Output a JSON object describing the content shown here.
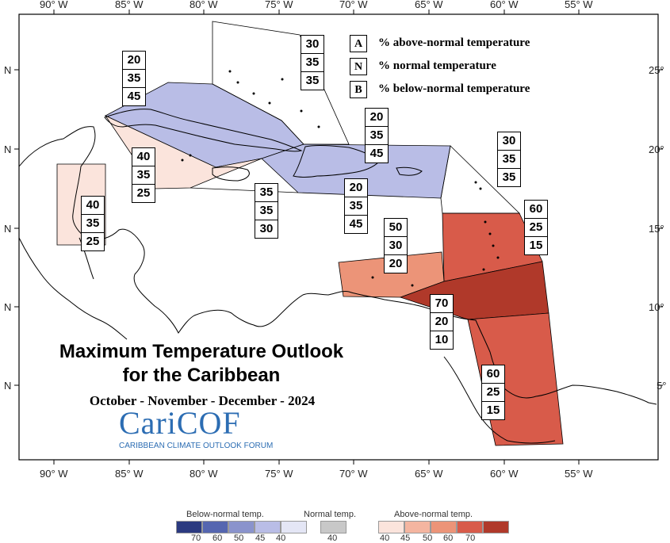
{
  "map": {
    "title_line1": "Maximum Temperature Outlook",
    "title_line2": "for the Caribbean",
    "period": "October - November - December - 2024",
    "logo": "CariCOF",
    "logo_subtitle": "CARIBBEAN CLIMATE OUTLOOK FORUM",
    "lon_labels": [
      "90° W",
      "85° W",
      "80° W",
      "75° W",
      "70° W",
      "65° W",
      "60° W",
      "55° W"
    ],
    "lat_labels_left": [
      "N",
      "N",
      "N",
      "N",
      "N"
    ],
    "lat_labels_right": [
      "25°",
      "20°",
      "15°",
      "10°",
      "5°"
    ]
  },
  "key": {
    "rows": [
      {
        "letter": "A",
        "text": "% above-normal temperature"
      },
      {
        "letter": "N",
        "text": "% normal temperature"
      },
      {
        "letter": "B",
        "text": "% below-normal temperature"
      }
    ]
  },
  "regions": [
    {
      "id": "bahamas",
      "A": "30",
      "N": "35",
      "B": "35",
      "color": "#ffffff"
    },
    {
      "id": "cuba",
      "A": "20",
      "N": "35",
      "B": "45",
      "color": "#b9bde6"
    },
    {
      "id": "cayman",
      "A": "40",
      "N": "35",
      "B": "25",
      "color": "#fbe4dc"
    },
    {
      "id": "jamaica",
      "A": "35",
      "N": "35",
      "B": "30",
      "color": "#ffffff"
    },
    {
      "id": "hispaniola",
      "A": "20",
      "N": "35",
      "B": "45",
      "color": "#b9bde6"
    },
    {
      "id": "puerto_rico_east",
      "A": "20",
      "N": "35",
      "B": "45",
      "color": "#b9bde6"
    },
    {
      "id": "belize",
      "A": "40",
      "N": "35",
      "B": "25",
      "color": "#fbe4dc"
    },
    {
      "id": "leeward",
      "A": "30",
      "N": "35",
      "B": "35",
      "color": "#ffffff"
    },
    {
      "id": "windward",
      "A": "60",
      "N": "25",
      "B": "15",
      "color": "#d85b4a"
    },
    {
      "id": "abc_islands",
      "A": "50",
      "N": "30",
      "B": "20",
      "color": "#ec9478"
    },
    {
      "id": "trinidad",
      "A": "70",
      "N": "20",
      "B": "10",
      "color": "#b0392a"
    },
    {
      "id": "guianas",
      "A": "60",
      "N": "25",
      "B": "15",
      "color": "#d85b4a"
    }
  ],
  "scale": {
    "below_title": "Below-normal temp.",
    "normal_title": "Normal temp.",
    "above_title": "Above-normal temp.",
    "below_colors": [
      "#2b3a80",
      "#5566b0",
      "#8a93cc",
      "#b9bde6",
      "#e4e6f5"
    ],
    "below_ticks": [
      "70",
      "60",
      "50",
      "45",
      "40"
    ],
    "normal_color": "#c8c8c8",
    "normal_tick": "40",
    "above_colors": [
      "#fbe4dc",
      "#f4b5a0",
      "#ec9478",
      "#d85b4a",
      "#b0392a"
    ],
    "above_ticks": [
      "40",
      "45",
      "50",
      "60",
      "70"
    ]
  }
}
